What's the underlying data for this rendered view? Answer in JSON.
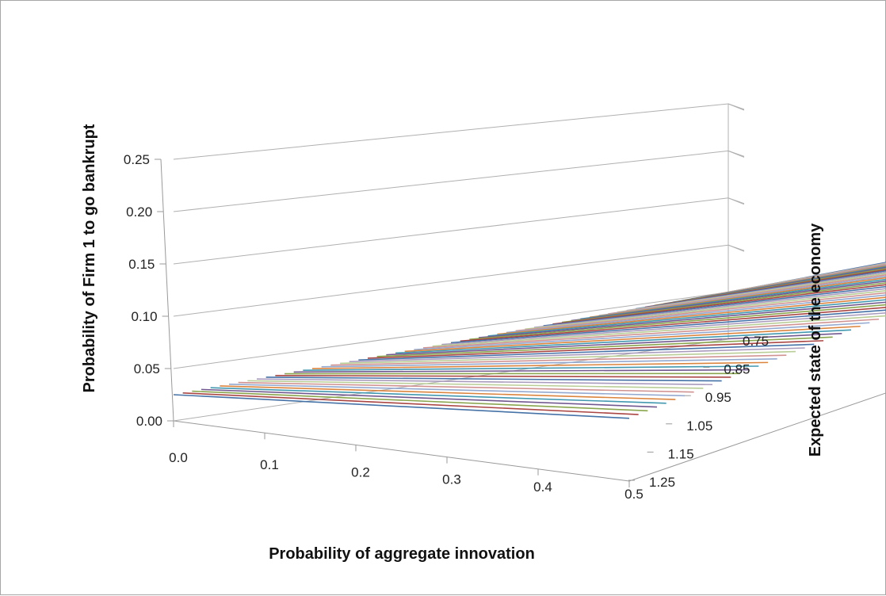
{
  "chart_data": {
    "type": "surface",
    "title": "",
    "xlabel": "Probability of aggregate innovation",
    "ylabel": "Expected state of the economy",
    "zlabel": "Probability of Firm 1 to go bankrupt",
    "x_ticks": [
      "0.0",
      "0.1",
      "0.2",
      "0.3",
      "0.4",
      "0.5"
    ],
    "y_ticks": [
      "0.75",
      "0.85",
      "0.95",
      "1.05",
      "1.15",
      "1.25"
    ],
    "z_ticks": [
      "0.00",
      "0.05",
      "0.10",
      "0.15",
      "0.20",
      "0.25"
    ],
    "x_range": [
      0,
      0.5
    ],
    "y_range": [
      1.25,
      0.75
    ],
    "z_range": [
      0,
      0.25
    ],
    "surface": {
      "x": [
        0.0,
        0.5
      ],
      "y_start": 1.25,
      "y_end": 0.75,
      "corners": [
        {
          "x": 0.0,
          "y": 1.25,
          "z": 0.025
        },
        {
          "x": 0.5,
          "y": 1.25,
          "z": 0.06
        },
        {
          "x": 0.0,
          "y": 0.75,
          "z": 0.05
        },
        {
          "x": 0.5,
          "y": 0.75,
          "z": 0.205
        }
      ]
    },
    "series_colors": [
      "#4572a7",
      "#aa4643",
      "#89a54e",
      "#71588f",
      "#4198af",
      "#db843d",
      "#93a9cf",
      "#d19392",
      "#b9cd96",
      "#a99bbd"
    ],
    "grid": true,
    "legend": "none"
  }
}
